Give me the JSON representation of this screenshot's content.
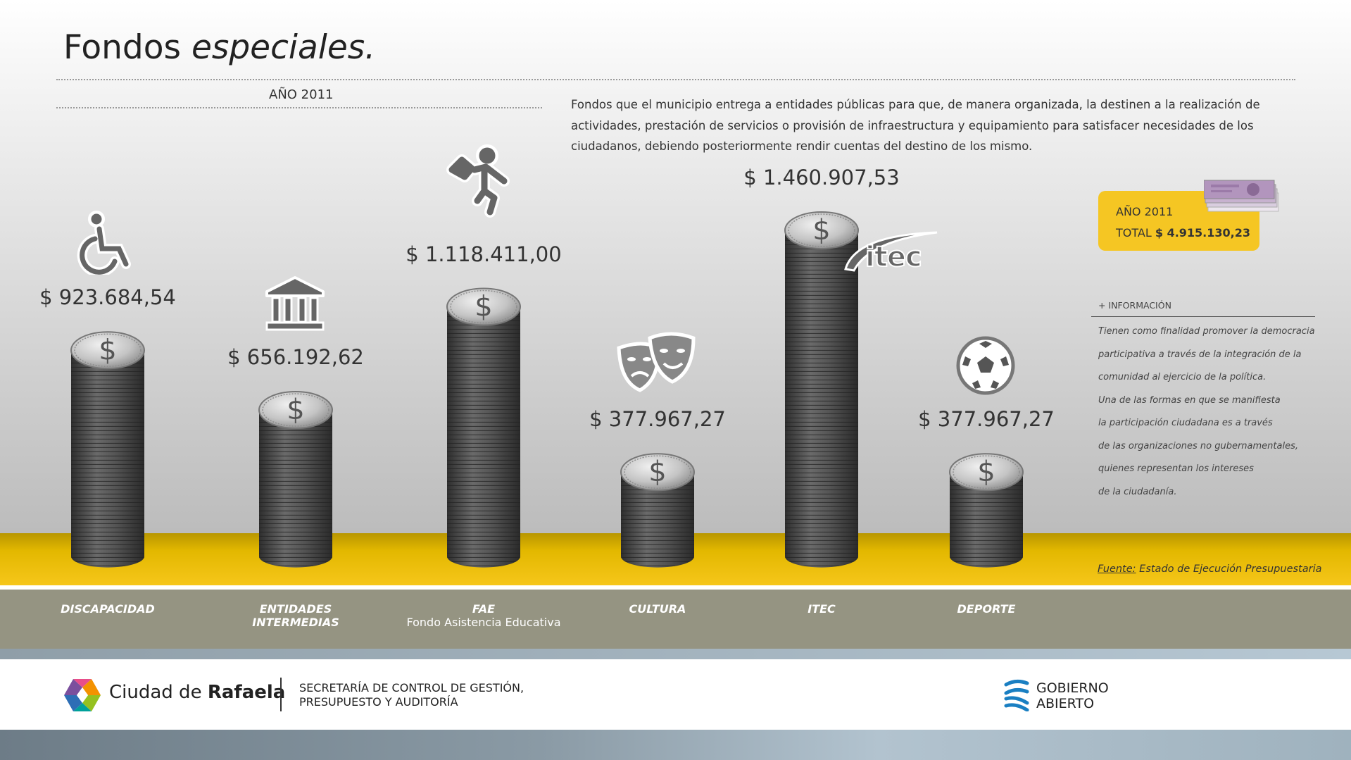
{
  "header": {
    "title_regular": "Fondos",
    "title_italic": "especiales.",
    "year": "AÑO 2011",
    "description": "Fondos que el municipio entrega a entidades públicas para que, de manera organizada, la destinen a la realización de actividades, prestación de servicios o provisión de infraestructura y equipamiento para satisfacer necesidades de los ciudadanos, debiendo posteriormente rendir cuentas del destino de los mismo."
  },
  "chart_data": {
    "type": "bar",
    "categories": [
      "DISCAPACIDAD",
      "ENTIDADES INTERMEDIAS",
      "FAE",
      "CULTURA",
      "ITEC",
      "DEPORTE"
    ],
    "values": [
      923684.54,
      656192.62,
      1118411.0,
      377967.27,
      1460907.53,
      377967.27
    ],
    "value_labels": [
      "$ 923.684,54",
      "$ 656.192,62",
      "$ 1.118.411,00",
      "$ 377.967,27",
      "$ 1.460.907,53",
      "$ 377.967,27"
    ],
    "subtitles": [
      "",
      "",
      "Fondo Asistencia Educativa",
      "",
      "",
      ""
    ],
    "icons": [
      "wheelchair-icon",
      "building-columns-icon",
      "student-running-icon",
      "theater-masks-icon",
      "itec-logo-icon",
      "soccer-ball-icon"
    ],
    "bar_style": "coin-stack",
    "ylim": [
      0,
      1600000
    ],
    "grid": false
  },
  "total_box": {
    "year": "AÑO 2011",
    "total_label": "TOTAL",
    "total_value": "$ 4.915.130,23"
  },
  "info": {
    "heading": "+ INFORMACIÓN",
    "lines": [
      "Tienen como finalidad promover la democracia",
      "participativa a través de la integración de la",
      "comunidad al ejercicio de la política.",
      "Una de las formas en que se manifiesta",
      "la participación ciudadana es a través",
      "de las organizaciones no gubernamentales,",
      "quienes representan los intereses",
      "de la ciudadanía."
    ]
  },
  "source": {
    "label": "Fuente:",
    "text": "Estado de Ejecución Presupuestaria"
  },
  "footer": {
    "city_regular": "Ciudad de",
    "city_bold": "Rafaela",
    "secretaria_line1": "SECRETARÍA DE CONTROL DE GESTIÓN,",
    "secretaria_line2": "PRESUPUESTO Y AUDITORÍA",
    "gob_line1": "GOBIERNO",
    "gob_line2": "ABIERTO",
    "itec_logo_text": "itec"
  },
  "colors": {
    "accent_yellow": "#f5c623",
    "category_band": "#959482",
    "coin_dark": "#4a4a4a",
    "coin_light": "#d4d4d4"
  }
}
